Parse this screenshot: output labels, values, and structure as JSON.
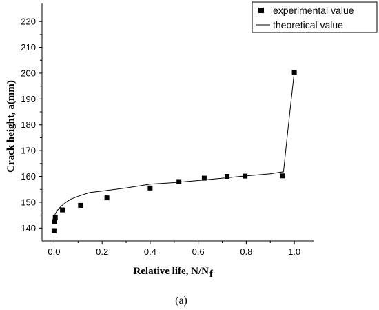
{
  "chart_data": {
    "type": "scatter",
    "xlabel": "Relative life, N/N",
    "xlabel_sub": "f",
    "ylabel": "Crack height, a(mm)",
    "caption": "(a)",
    "xlim": [
      -0.05,
      1.08
    ],
    "ylim": [
      135,
      227
    ],
    "xticks": [
      "0.0",
      "0.2",
      "0.4",
      "0.6",
      "0.8",
      "1.0"
    ],
    "yticks": [
      "140",
      "150",
      "160",
      "170",
      "180",
      "190",
      "200",
      "210",
      "220"
    ],
    "legend_position": "top-right",
    "series": [
      {
        "name": "experimental value",
        "kind": "markers",
        "color": "#000000",
        "x": [
          0.0,
          0.003,
          0.005,
          0.035,
          0.11,
          0.22,
          0.4,
          0.52,
          0.625,
          0.72,
          0.795,
          0.95,
          1.0
        ],
        "y": [
          139,
          142.5,
          144,
          147,
          148.8,
          151.7,
          155.5,
          158,
          159.3,
          160,
          160.1,
          160.2,
          200.3
        ]
      },
      {
        "name": "theoretical value",
        "kind": "line",
        "color": "#000000",
        "x": [
          0.0,
          0.005,
          0.015,
          0.03,
          0.05,
          0.07,
          0.1,
          0.15,
          0.2,
          0.3,
          0.4,
          0.5,
          0.6,
          0.7,
          0.8,
          0.9,
          0.955,
          0.97,
          0.985,
          1.0
        ],
        "y": [
          144,
          145.5,
          147,
          148.5,
          150,
          151.2,
          152.3,
          153.8,
          154.3,
          155.5,
          157,
          157.6,
          158.4,
          159.3,
          160.2,
          161,
          161.8,
          175,
          188,
          200.5
        ]
      }
    ]
  }
}
